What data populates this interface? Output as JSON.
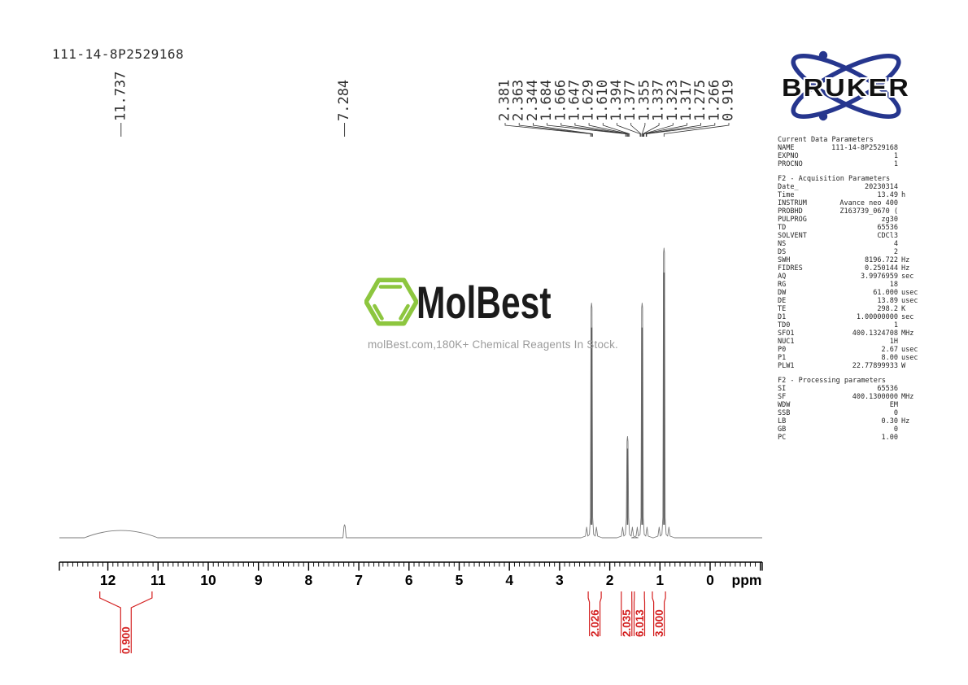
{
  "header": {
    "sample_id": "111-14-8P2529168"
  },
  "bruker": {
    "brand": "BRUKER",
    "ring_color": "#26368e",
    "text_color": "#111111"
  },
  "watermark": {
    "brand": "MolBest",
    "tagline": "molBest.com,180K+ Chemical Reagents In Stock.",
    "hexagon_color": "#8dc63f"
  },
  "chart_data": {
    "type": "line",
    "title": "111-14-8P2529168",
    "xlabel": "ppm",
    "x_range": [
      13.0,
      -1.0
    ],
    "x_ticks": [
      12,
      11,
      10,
      9,
      8,
      7,
      6,
      5,
      4,
      3,
      2,
      1,
      0
    ],
    "grid": false,
    "line_color": "#7a7a7a",
    "annotation_color": "#2f2f2f",
    "integral_color": "#d42020",
    "peak_annotations": {
      "left_singles": [
        "11.737",
        "7.284"
      ],
      "cluster": [
        "2.381",
        "2.363",
        "2.344",
        "1.684",
        "1.666",
        "1.647",
        "1.629",
        "1.610",
        "1.394",
        "1.377",
        "1.355",
        "1.337",
        "1.323",
        "1.317",
        "1.275",
        "1.266",
        "0.919"
      ]
    },
    "profile_peaks": [
      {
        "ppm": 11.737,
        "rel_height": 0.025,
        "shape": "broad"
      },
      {
        "ppm": 7.284,
        "rel_height": 0.045,
        "shape": "sharp"
      },
      {
        "ppm": 2.363,
        "rel_height": 0.81,
        "shape": "spike"
      },
      {
        "ppm": 1.647,
        "rel_height": 0.35,
        "shape": "spike"
      },
      {
        "ppm": 1.355,
        "rel_height": 0.81,
        "shape": "spike"
      },
      {
        "ppm": 0.919,
        "rel_height": 1.0,
        "shape": "spike"
      }
    ],
    "integrals": [
      {
        "label": "0.900",
        "region_ppm": [
          12.16,
          11.12
        ]
      },
      {
        "label": "2.026",
        "region_ppm": [
          2.43,
          2.17
        ]
      },
      {
        "label": "2.035",
        "region_ppm": [
          1.77,
          1.56
        ]
      },
      {
        "label": "6.013",
        "region_ppm": [
          1.51,
          1.31
        ]
      },
      {
        "label": "3.000",
        "region_ppm": [
          1.15,
          0.89
        ]
      }
    ]
  },
  "parameters": {
    "sections": [
      {
        "header": "Current Data Parameters",
        "rows": [
          {
            "name": "NAME",
            "value": "111-14-8P2529168",
            "unit": ""
          },
          {
            "name": "EXPNO",
            "value": "1",
            "unit": ""
          },
          {
            "name": "PROCNO",
            "value": "1",
            "unit": ""
          }
        ]
      },
      {
        "header": "F2 - Acquisition Parameters",
        "rows": [
          {
            "name": "Date_",
            "value": "20230314",
            "unit": ""
          },
          {
            "name": "Time",
            "value": "13.49",
            "unit": "h"
          },
          {
            "name": "INSTRUM",
            "value": "Avance neo 400",
            "unit": ""
          },
          {
            "name": "PROBHD",
            "value": "Z163739_0670 (",
            "unit": ""
          },
          {
            "name": "PULPROG",
            "value": "zg30",
            "unit": ""
          },
          {
            "name": "TD",
            "value": "65536",
            "unit": ""
          },
          {
            "name": "SOLVENT",
            "value": "CDCl3",
            "unit": ""
          },
          {
            "name": "NS",
            "value": "4",
            "unit": ""
          },
          {
            "name": "DS",
            "value": "2",
            "unit": ""
          },
          {
            "name": "SWH",
            "value": "8196.722",
            "unit": "Hz"
          },
          {
            "name": "FIDRES",
            "value": "0.250144",
            "unit": "Hz"
          },
          {
            "name": "AQ",
            "value": "3.9976959",
            "unit": "sec"
          },
          {
            "name": "RG",
            "value": "18",
            "unit": ""
          },
          {
            "name": "DW",
            "value": "61.000",
            "unit": "usec"
          },
          {
            "name": "DE",
            "value": "13.89",
            "unit": "usec"
          },
          {
            "name": "TE",
            "value": "298.2",
            "unit": "K"
          },
          {
            "name": "D1",
            "value": "1.00000000",
            "unit": "sec"
          },
          {
            "name": "TD0",
            "value": "1",
            "unit": ""
          },
          {
            "name": "SFO1",
            "value": "400.1324708",
            "unit": "MHz"
          },
          {
            "name": "NUC1",
            "value": "1H",
            "unit": ""
          },
          {
            "name": "P0",
            "value": "2.67",
            "unit": "usec"
          },
          {
            "name": "P1",
            "value": "8.00",
            "unit": "usec"
          },
          {
            "name": "PLW1",
            "value": "22.77899933",
            "unit": "W"
          }
        ]
      },
      {
        "header": "F2 - Processing parameters",
        "rows": [
          {
            "name": "SI",
            "value": "65536",
            "unit": ""
          },
          {
            "name": "SF",
            "value": "400.1300000",
            "unit": "MHz"
          },
          {
            "name": "WDW",
            "value": "EM",
            "unit": ""
          },
          {
            "name": "SSB",
            "value": "0",
            "unit": ""
          },
          {
            "name": "LB",
            "value": "0.30",
            "unit": "Hz"
          },
          {
            "name": "GB",
            "value": "0",
            "unit": ""
          },
          {
            "name": "PC",
            "value": "1.00",
            "unit": ""
          }
        ]
      }
    ]
  }
}
